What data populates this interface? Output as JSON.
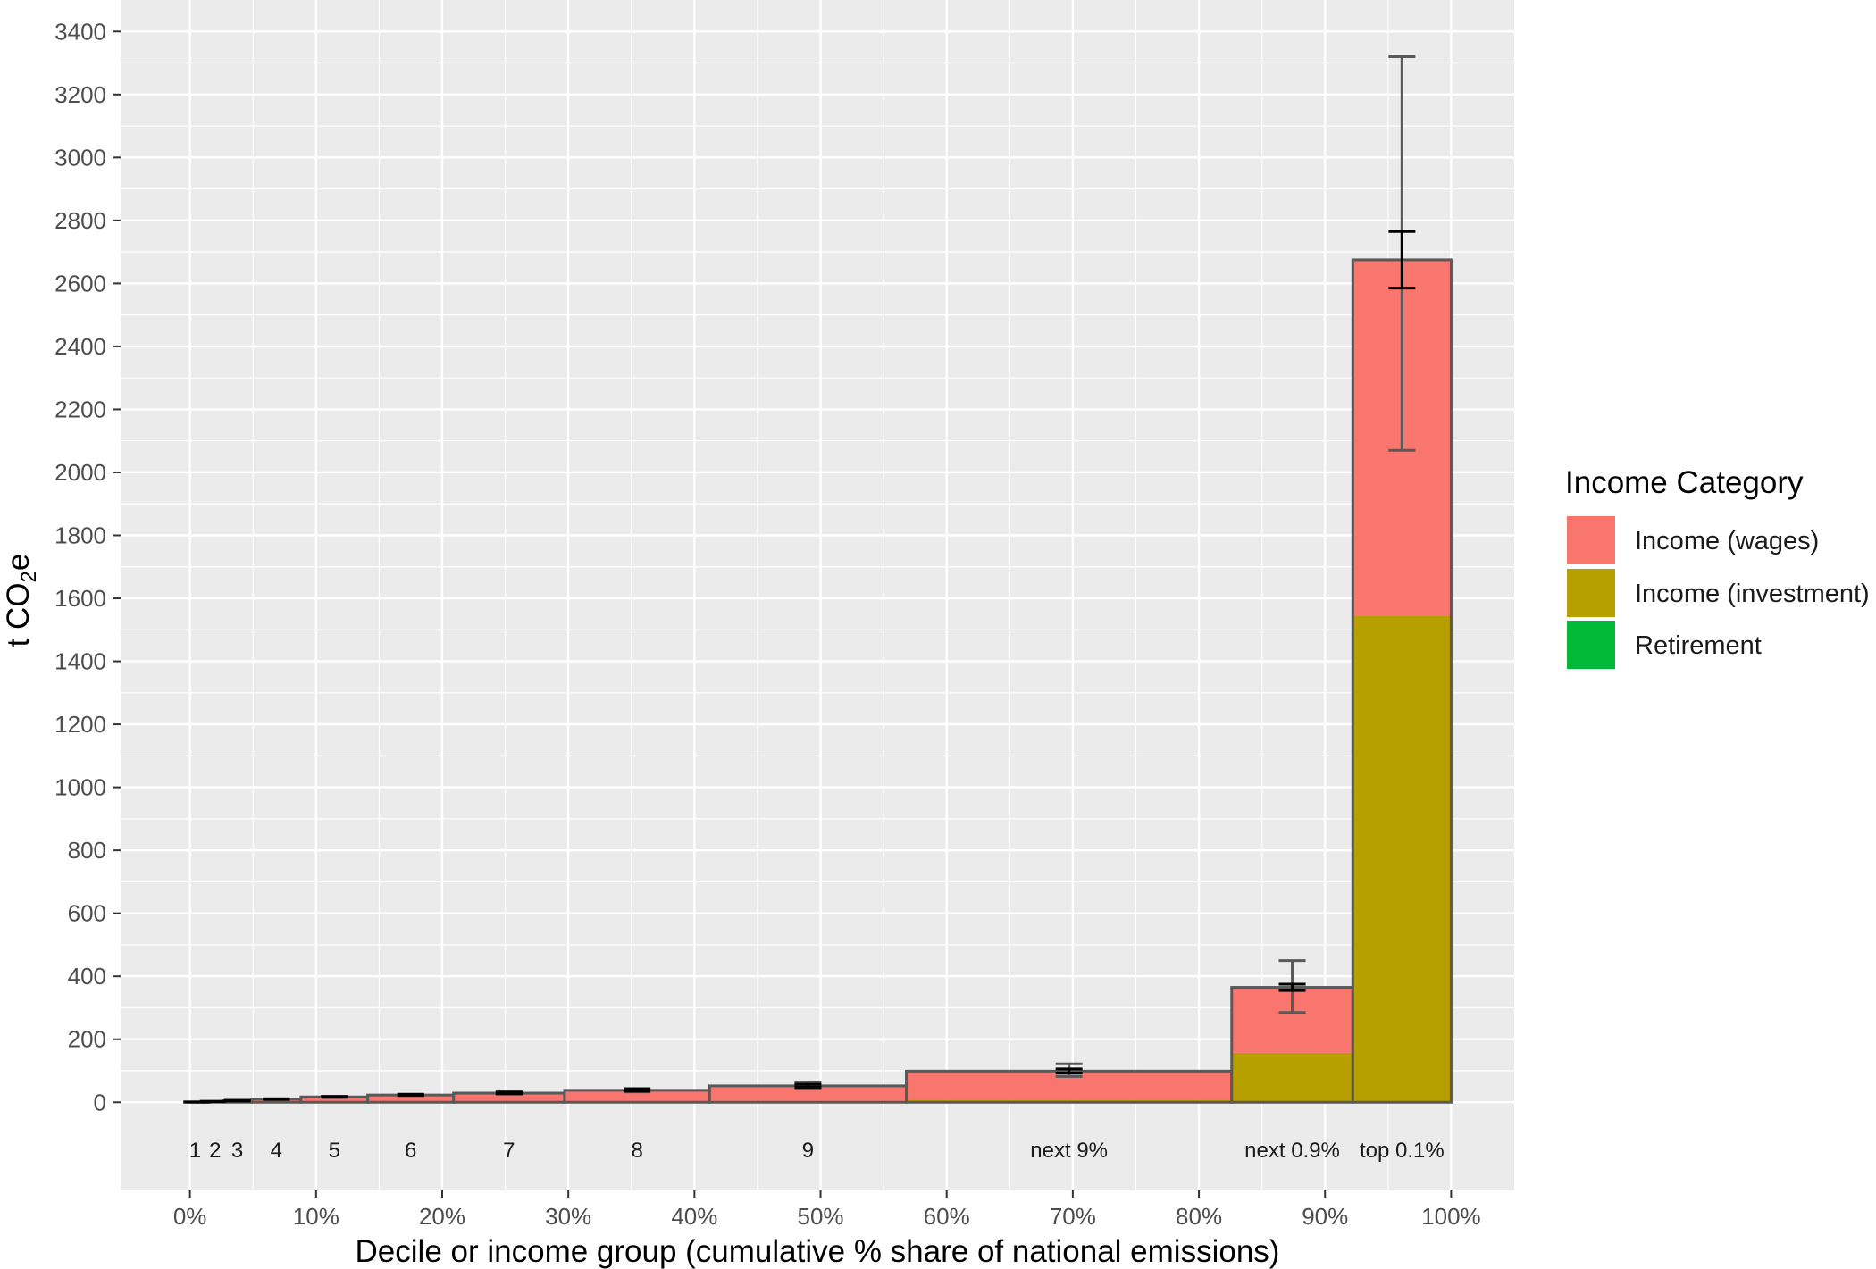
{
  "chart_data": {
    "type": "bar",
    "subtype": "stacked variable-width bars with error bars",
    "xlabel": "Decile or income group (cumulative % share of national emissions)",
    "ylabel": "t CO2e",
    "ylabel_main": "t CO",
    "ylabel_sub": "2",
    "ylabel_end": "e",
    "xlim": [
      -5.5,
      105
    ],
    "ylim": [
      -280,
      3500
    ],
    "x_ticks": [
      0,
      10,
      20,
      30,
      40,
      50,
      60,
      70,
      80,
      90,
      100
    ],
    "x_tick_labels": [
      "0%",
      "10%",
      "20%",
      "30%",
      "40%",
      "50%",
      "60%",
      "70%",
      "80%",
      "90%",
      "100%"
    ],
    "y_ticks": [
      0,
      200,
      400,
      600,
      800,
      1000,
      1200,
      1400,
      1600,
      1800,
      2000,
      2200,
      2400,
      2600,
      2800,
      3000,
      3200,
      3400
    ],
    "grid": true,
    "legend_title": "Income Category",
    "legend_position": "right",
    "series_names": [
      "Income (wages)",
      "Income (investment)",
      "Retirement"
    ],
    "colors": {
      "wages": "#F8766D",
      "investment": "#B79F00",
      "retirement": "#00BA38",
      "outline": "#595959",
      "panel": "#EBEBEB",
      "gridline": "#FFFFFF"
    },
    "groups": [
      {
        "label": "1",
        "x_start": 0.0,
        "x_end": 1.1,
        "wages": 0.5,
        "investment": 0.1,
        "retirement": 0.1,
        "total": 0.7,
        "err_ci": [
          0.5,
          1.0
        ],
        "err_range": [
          0.5,
          1.0
        ]
      },
      {
        "label": "2",
        "x_start": 1.1,
        "x_end": 2.6,
        "wages": 2.0,
        "investment": 0.2,
        "retirement": 0.2,
        "total": 2.4,
        "err_ci": [
          2.0,
          3.0
        ],
        "err_range": [
          2.0,
          3.0
        ]
      },
      {
        "label": "3",
        "x_start": 2.6,
        "x_end": 4.9,
        "wages": 4.5,
        "investment": 0.3,
        "retirement": 0.2,
        "total": 5,
        "err_ci": [
          4,
          6
        ],
        "err_range": [
          4,
          6
        ]
      },
      {
        "label": "4",
        "x_start": 4.9,
        "x_end": 8.8,
        "wages": 9,
        "investment": 0.5,
        "retirement": 0.5,
        "total": 10,
        "err_ci": [
          9,
          11
        ],
        "err_range": [
          9,
          11
        ]
      },
      {
        "label": "5",
        "x_start": 8.8,
        "x_end": 14.1,
        "wages": 15,
        "investment": 1,
        "retirement": 1,
        "total": 17,
        "err_ci": [
          16,
          18
        ],
        "err_range": [
          15,
          19
        ]
      },
      {
        "label": "6",
        "x_start": 14.1,
        "x_end": 20.9,
        "wages": 21,
        "investment": 1,
        "retirement": 1,
        "total": 23,
        "err_ci": [
          22,
          25
        ],
        "err_range": [
          21,
          26
        ]
      },
      {
        "label": "7",
        "x_start": 20.9,
        "x_end": 29.7,
        "wages": 27,
        "investment": 1,
        "retirement": 1,
        "total": 29,
        "err_ci": [
          27,
          32
        ],
        "err_range": [
          26,
          34
        ]
      },
      {
        "label": "8",
        "x_start": 29.7,
        "x_end": 41.2,
        "wages": 35,
        "investment": 2,
        "retirement": 1,
        "total": 38,
        "err_ci": [
          35,
          42
        ],
        "err_range": [
          33,
          44
        ]
      },
      {
        "label": "9",
        "x_start": 41.2,
        "x_end": 56.8,
        "wages": 48,
        "investment": 3,
        "retirement": 1,
        "total": 52,
        "err_ci": [
          48,
          57
        ],
        "err_range": [
          44,
          63
        ]
      },
      {
        "label": "next 9%",
        "x_start": 56.8,
        "x_end": 82.6,
        "wages": 90,
        "investment": 8,
        "retirement": 1,
        "total": 99,
        "err_ci": [
          93,
          106
        ],
        "err_range": [
          82,
          122
        ]
      },
      {
        "label": "next 0.9%",
        "x_start": 82.6,
        "x_end": 92.2,
        "wages": 208,
        "investment": 157,
        "retirement": 0,
        "total": 365,
        "err_ci": [
          355,
          375
        ],
        "err_range": [
          285,
          450
        ]
      },
      {
        "label": "top 0.1%",
        "x_start": 92.2,
        "x_end": 100.0,
        "wages": 1130,
        "investment": 1545,
        "retirement": 0,
        "total": 2675,
        "err_ci": [
          2585,
          2765
        ],
        "err_range": [
          2070,
          3320
        ]
      }
    ]
  }
}
